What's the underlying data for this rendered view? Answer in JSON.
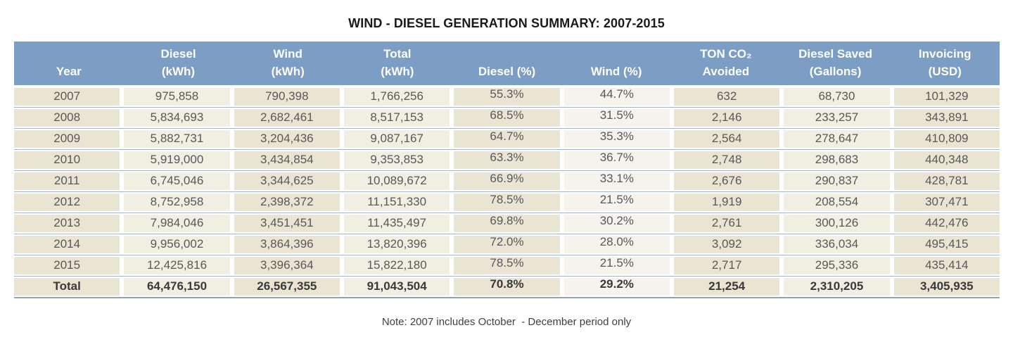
{
  "colors": {
    "header_bg": "#7c9dc4",
    "header_text": "#ffffff",
    "shade_dark": "#e9e5d2",
    "shade_light": "#f1efe2",
    "shade_lightest": "#f5f3eb",
    "separator": "#a4b4c2",
    "bottom_border": "#8fa5b5",
    "cell_text": "#57585b",
    "total_text": "#39393b",
    "title_text": "#1a1a1a",
    "note_text": "#3f3f3f"
  },
  "chart_data": {
    "type": "table",
    "title": "WIND - DIESEL GENERATION SUMMARY: 2007-2015",
    "note": "Note: 2007 includes October  - December period only",
    "columns": [
      {
        "id": "year",
        "label_lines": [
          "Year"
        ],
        "shade": "dark"
      },
      {
        "id": "diesel-kwh",
        "label_lines": [
          "Diesel",
          "(kWh)"
        ],
        "shade": "light"
      },
      {
        "id": "wind-kwh",
        "label_lines": [
          "Wind",
          "(kWh)"
        ],
        "shade": "dark"
      },
      {
        "id": "total-kwh",
        "label_lines": [
          "Total",
          "(kWh)"
        ],
        "shade": "light"
      },
      {
        "id": "diesel-pct",
        "label_lines": [
          "Diesel (%)"
        ],
        "shade": "dark",
        "pct": true
      },
      {
        "id": "wind-pct",
        "label_lines": [
          "Wind (%)"
        ],
        "shade": "lightest",
        "pct": true
      },
      {
        "id": "ton-co2",
        "label_lines": [
          "TON CO₂",
          "Avoided"
        ],
        "shade": "dark"
      },
      {
        "id": "diesel-saved",
        "label_lines": [
          "Diesel Saved",
          "(Gallons)"
        ],
        "shade": "light"
      },
      {
        "id": "invoicing",
        "label_lines": [
          "Invoicing",
          "(USD)"
        ],
        "shade": "dark"
      }
    ],
    "rows": [
      [
        "2007",
        "975,858",
        "790,398",
        "1,766,256",
        "55.3%",
        "44.7%",
        "632",
        "68,730",
        "101,329"
      ],
      [
        "2008",
        "5,834,693",
        "2,682,461",
        "8,517,153",
        "68.5%",
        "31.5%",
        "2,146",
        "233,257",
        "343,891"
      ],
      [
        "2009",
        "5,882,731",
        "3,204,436",
        "9,087,167",
        "64.7%",
        "35.3%",
        "2,564",
        "278,647",
        "410,809"
      ],
      [
        "2010",
        "5,919,000",
        "3,434,854",
        "9,353,853",
        "63.3%",
        "36.7%",
        "2,748",
        "298,683",
        "440,348"
      ],
      [
        "2011",
        "6,745,046",
        "3,344,625",
        "10,089,672",
        "66.9%",
        "33.1%",
        "2,676",
        "290,837",
        "428,781"
      ],
      [
        "2012",
        "8,752,958",
        "2,398,372",
        "11,151,330",
        "78.5%",
        "21.5%",
        "1,919",
        "208,554",
        "307,471"
      ],
      [
        "2013",
        "7,984,046",
        "3,451,451",
        "11,435,497",
        "69.8%",
        "30.2%",
        "2,761",
        "300,126",
        "442,476"
      ],
      [
        "2014",
        "9,956,002",
        "3,864,396",
        "13,820,396",
        "72.0%",
        "28.0%",
        "3,092",
        "336,034",
        "495,415"
      ],
      [
        "2015",
        "12,425,816",
        "3,396,364",
        "15,822,180",
        "78.5%",
        "21.5%",
        "2,717",
        "295,336",
        "435,414"
      ]
    ],
    "total_row": [
      "Total",
      "64,476,150",
      "26,567,355",
      "91,043,504",
      "70.8%",
      "29.2%",
      "21,254",
      "2,310,205",
      "3,405,935"
    ]
  }
}
